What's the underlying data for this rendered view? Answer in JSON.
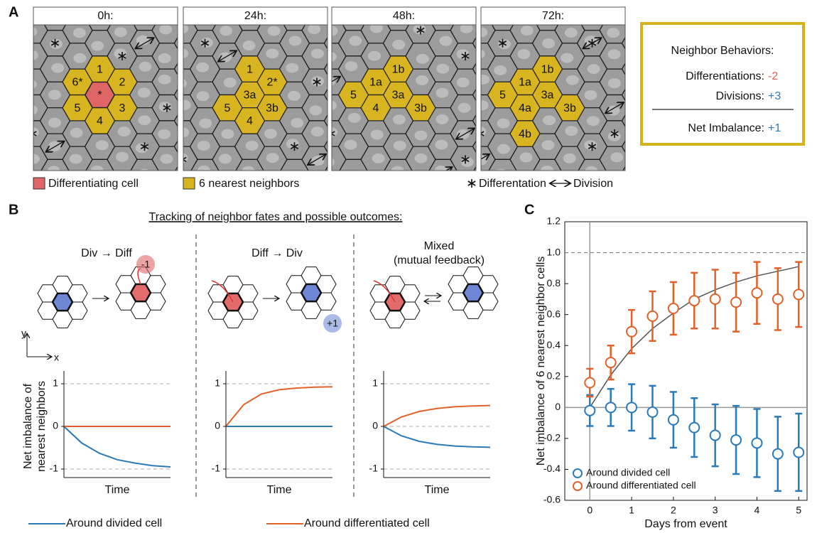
{
  "panel_a": {
    "letter": "A",
    "differentiating_color": "#e06666",
    "neighbor_color": "#d8b520",
    "frames": [
      {
        "time": "0h:",
        "cells": [
          "*",
          "1",
          "2",
          "3",
          "4",
          "5",
          "6*"
        ]
      },
      {
        "time": "24h:",
        "cells": [
          "3a",
          "1",
          "2*",
          "3b",
          "4",
          "5"
        ]
      },
      {
        "time": "48h:",
        "cells": [
          "3a",
          "1b",
          "1a",
          "3b",
          "4",
          "5"
        ]
      },
      {
        "time": "72h:",
        "cells": [
          "3a",
          "1b",
          "1a",
          "3b",
          "4a",
          "5",
          "4b"
        ]
      }
    ],
    "legend": {
      "differentiating": "Differentiating cell",
      "neighbors": "6 nearest neighbors",
      "differentiation": "Differentation",
      "division": "Division"
    },
    "summary": {
      "title": "Neighbor Behaviors:",
      "rows": [
        {
          "label": "Differentiations:",
          "value": "-2",
          "color": "#e0625a"
        },
        {
          "label": "Divisions:",
          "value": "+3",
          "color": "#2a7ab8"
        },
        {
          "label": "Net Imbalance:",
          "value": "+1",
          "color": "#2a7ab8"
        }
      ]
    }
  },
  "panel_b": {
    "letter": "B",
    "title": "Tracking of neighbor fates and possible outcomes:",
    "columns": [
      {
        "title": [
          "Div → Diff"
        ],
        "badge": "-1"
      },
      {
        "title": [
          "Diff → Div"
        ],
        "badge": "+1"
      },
      {
        "title": [
          "Mixed",
          "(mutual feedback)"
        ]
      }
    ],
    "axis_labels": {
      "y": "y",
      "x": "x"
    }
  },
  "panel_c": {
    "letter": "C"
  },
  "chart_data": [
    {
      "type": "line",
      "x": [
        0,
        1,
        2,
        3,
        4,
        5,
        6
      ],
      "xlim": [
        0,
        6
      ],
      "ylim": [
        -1.2,
        1.2
      ],
      "yticks": [
        1,
        0,
        -1
      ],
      "ref_lines": [
        1,
        -1
      ],
      "xlabel": "Time",
      "ylabel": [
        "Net imbalance of",
        "nearest neighbors"
      ],
      "series": [
        {
          "color": "#2a7ab8",
          "values": [
            0,
            -0.39,
            -0.63,
            -0.78,
            -0.86,
            -0.92,
            -0.95
          ]
        },
        {
          "color": "#e0622a",
          "values": [
            0,
            0,
            0,
            0,
            0,
            0,
            0
          ]
        }
      ]
    },
    {
      "type": "line",
      "x": [
        0,
        1,
        2,
        3,
        4,
        5,
        6
      ],
      "xlim": [
        0,
        6
      ],
      "ylim": [
        -1.2,
        1.2
      ],
      "yticks": [
        1,
        0,
        -1
      ],
      "ref_lines": [
        1,
        -1
      ],
      "xlabel": "Time",
      "series": [
        {
          "color": "#2a7ab8",
          "values": [
            0,
            0,
            0,
            0,
            0,
            0,
            0
          ]
        },
        {
          "color": "#e0622a",
          "values": [
            0,
            0.51,
            0.76,
            0.86,
            0.9,
            0.92,
            0.93
          ]
        }
      ]
    },
    {
      "type": "line",
      "x": [
        0,
        1,
        2,
        3,
        4,
        5,
        6
      ],
      "xlim": [
        0,
        6
      ],
      "ylim": [
        -1.2,
        1.2
      ],
      "yticks": [
        1,
        0,
        -1
      ],
      "ref_lines": [
        1,
        0,
        -1
      ],
      "xlabel": "Time",
      "series": [
        {
          "color": "#2a7ab8",
          "values": [
            0,
            -0.22,
            -0.35,
            -0.42,
            -0.46,
            -0.48,
            -0.49
          ]
        },
        {
          "color": "#e0622a",
          "values": [
            0,
            0.22,
            0.35,
            0.42,
            0.46,
            0.48,
            0.49
          ]
        }
      ]
    },
    {
      "type": "errorbar",
      "x": [
        0,
        0.5,
        1,
        1.5,
        2,
        2.5,
        3,
        3.5,
        4,
        4.5,
        5
      ],
      "xlim": [
        -0.6,
        5.2
      ],
      "ylim": [
        -0.6,
        1.2
      ],
      "xticks": [
        0,
        1,
        2,
        3,
        4,
        5
      ],
      "yticks": [
        -0.6,
        -0.4,
        -0.2,
        0,
        0.2,
        0.4,
        0.6,
        0.8,
        {
          "value": 1,
          "label": "1.0"
        },
        1.2
      ],
      "ref_lines": [
        1
      ],
      "xlabel": "Days from event",
      "ylabel": "Net imbalance of 6 nearest neighbor cells",
      "legend": "lower left",
      "series": [
        {
          "name": "Around divided cell",
          "color": "#2a7ab8",
          "values": [
            -0.02,
            0.0,
            0.0,
            -0.03,
            -0.08,
            -0.13,
            -0.18,
            -0.21,
            -0.23,
            -0.3,
            -0.29
          ],
          "errors": [
            0.1,
            0.12,
            0.15,
            0.17,
            0.18,
            0.19,
            0.2,
            0.22,
            0.22,
            0.24,
            0.25
          ]
        },
        {
          "name": "Around differentiated cell",
          "color": "#e0622a",
          "values": [
            0.16,
            0.29,
            0.49,
            0.59,
            0.64,
            0.69,
            0.7,
            0.68,
            0.74,
            0.7,
            0.73
          ],
          "errors": [
            0.09,
            0.11,
            0.14,
            0.16,
            0.17,
            0.18,
            0.19,
            0.19,
            0.2,
            0.2,
            0.21
          ]
        }
      ],
      "fit": {
        "color": "#555555",
        "values": [
          0,
          0.21,
          0.38,
          0.51,
          0.61,
          0.7,
          0.76,
          0.81,
          0.85,
          0.88,
          0.91
        ]
      }
    }
  ]
}
